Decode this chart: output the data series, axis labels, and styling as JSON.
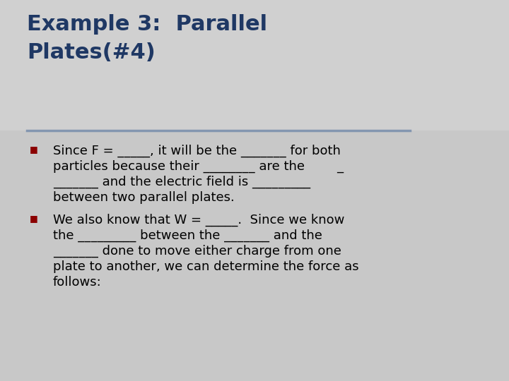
{
  "title_line1": "Example 3:  Parallel",
  "title_line2": "Plates(#4)",
  "title_color": "#1F3864",
  "bg_color": "#C8C8C8",
  "title_bg_color": "#D0D0D0",
  "divider_color": "#8496B0",
  "bullet_color": "#8B0000",
  "text_color": "#000000",
  "bullet1_lines": [
    "Since F = _____, it will be the _______ for both",
    "particles because their ________ are the        _",
    "_______ and the electric field is _________",
    "between two parallel plates."
  ],
  "bullet2_lines": [
    "We also know that W = _____.  Since we know",
    "the _________ between the _______ and the",
    "_______ done to move either charge from one",
    "plate to another, we can determine the force as",
    "follows:"
  ],
  "font_family": "DejaVu Sans",
  "title_fontsize": 22,
  "body_fontsize": 13,
  "bullet_marker": "■"
}
